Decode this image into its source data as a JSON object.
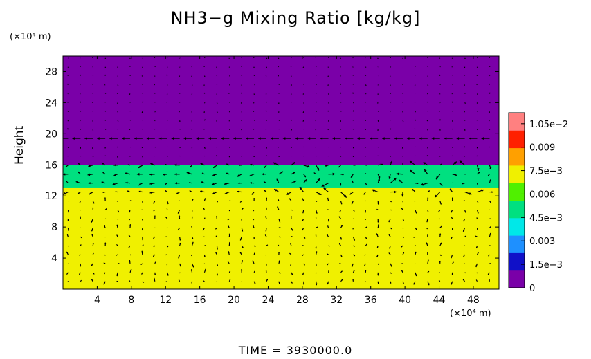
{
  "chart_data": {
    "type": "heatmap",
    "title": "NH3−g Mixing Ratio [kg/kg]",
    "xlabel": "",
    "ylabel": "Height",
    "x_unit": "(×10⁴ m)",
    "y_unit": "(×10⁴ m)",
    "footer": "TIME  =  3930000.0",
    "xlim": [
      0,
      51
    ],
    "ylim": [
      0,
      30
    ],
    "x_ticks": [
      4,
      8,
      12,
      16,
      20,
      24,
      28,
      32,
      36,
      40,
      44,
      48
    ],
    "y_ticks": [
      4,
      8,
      12,
      16,
      20,
      24,
      28
    ],
    "colorbar": {
      "range": [
        0,
        0.0112
      ],
      "tick_values": [
        0,
        0.0015,
        0.003,
        0.0045,
        0.006,
        0.0075,
        0.009,
        0.0105
      ],
      "tick_labels": [
        "0",
        "1.5e−3",
        "0.003",
        "4.5e−3",
        "0.006",
        "7.5e−3",
        "0.009",
        "1.05e−2"
      ],
      "colors": [
        "#7a00a8",
        "#1010c8",
        "#1e90ff",
        "#00e8e8",
        "#00e080",
        "#50f000",
        "#f0f000",
        "#ffa000",
        "#ff2000",
        "#ff8080"
      ]
    },
    "regions": [
      {
        "height_range": [
          16,
          30
        ],
        "value": 0
      },
      {
        "height_range": [
          15,
          16
        ],
        "value": 0.0045
      },
      {
        "height_range": [
          13,
          15
        ],
        "value": 0.0055
      },
      {
        "height_range": [
          10,
          13
        ],
        "value": 0.0068
      },
      {
        "height_range": [
          0,
          10
        ],
        "value": 0.0078
      }
    ],
    "overlay": "wind vectors"
  }
}
